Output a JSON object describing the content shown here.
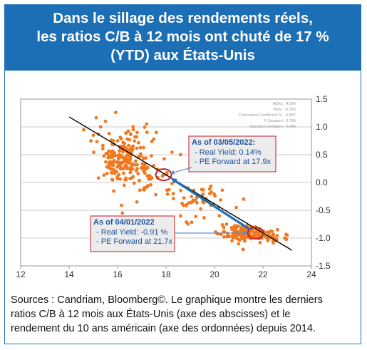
{
  "header": {
    "line1": "Dans le sillage des rendements réels,",
    "line2": "les ratios C/B à 12 mois ont chuté de 17 %",
    "line3": "(YTD) aux États-Unis"
  },
  "caption": {
    "line1": "Sources : Candriam, Bloomberg©. Le graphique montre les derniers",
    "line2": "ratios C/B à 12 mois aux États-Unis (axe des abscisses) et le",
    "line3": "rendement du 10 ans américain (axe des ordonnées) depuis 2014."
  },
  "colors": {
    "header_bg": "#1d6fb5",
    "points": "#f07820",
    "fit_line": "#000000",
    "arrow": "#1f6fb8",
    "highlight": "#c0202a",
    "box_border": "#c0202a"
  },
  "chart_data": {
    "type": "scatter",
    "xlim": [
      12,
      24
    ],
    "ylim": [
      -1.5,
      1.5
    ],
    "xticks": [
      "12",
      "14",
      "16",
      "18",
      "20",
      "22",
      "24"
    ],
    "yticks": [
      "1.5",
      "1.0",
      "0.5",
      "0.0",
      "-0.5",
      "-1.0",
      "-1.5"
    ],
    "grid": "horizontal",
    "regression_line": {
      "x": [
        14.0,
        23.2
      ],
      "y": [
        1.18,
        -1.22
      ]
    },
    "stats": [
      {
        "label": "Alpha",
        "value": "4.886"
      },
      {
        "label": "Beta",
        "value": "-0.263"
      },
      {
        "label": "Correlation Coefficient R",
        "value": "-0.887"
      },
      {
        "label": "R Squared",
        "value": "0.786"
      },
      {
        "label": "Standard Deviation",
        "value": "0.048"
      }
    ],
    "annotations": [
      {
        "title": "As of 03/05/2022:",
        "lines": [
          "Real Yield: 0.14%",
          "PE Forward at 17.9x"
        ],
        "x": 17.9,
        "y": 0.14
      },
      {
        "title": "As of 04/01/2022",
        "lines": [
          "Real Yield: -0.91 %",
          "PE Forward at 21.7x"
        ],
        "x": 21.7,
        "y": -0.91
      }
    ],
    "arrow": {
      "from": [
        21.7,
        -0.91
      ],
      "to": [
        17.9,
        0.14
      ]
    },
    "clusters": [
      {
        "cx": 16.2,
        "cy": 0.45,
        "sx": 0.75,
        "sy": 0.35,
        "n": 190
      },
      {
        "cx": 17.3,
        "cy": 0.2,
        "sx": 0.6,
        "sy": 0.25,
        "n": 40
      },
      {
        "cx": 19.3,
        "cy": -0.35,
        "sx": 0.8,
        "sy": 0.25,
        "n": 45
      },
      {
        "cx": 21.3,
        "cy": -0.92,
        "sx": 0.75,
        "sy": 0.1,
        "n": 150
      },
      {
        "cx": 22.4,
        "cy": -1.0,
        "sx": 0.4,
        "sy": 0.06,
        "n": 20
      }
    ],
    "extra_points": [
      [
        14.6,
        0.95
      ],
      [
        15.0,
        0.85
      ],
      [
        14.9,
        0.75
      ],
      [
        15.3,
        1.0
      ],
      [
        15.5,
        1.1
      ],
      [
        16.2,
        -0.55
      ],
      [
        16.8,
        -0.35
      ],
      [
        17.2,
        1.05
      ],
      [
        17.6,
        0.9
      ],
      [
        18.6,
        0.5
      ],
      [
        18.3,
        -0.2
      ],
      [
        18.9,
        -0.1
      ],
      [
        19.8,
        -0.2
      ],
      [
        20.2,
        -0.6
      ],
      [
        20.5,
        -0.75
      ],
      [
        22.9,
        -1.0
      ],
      [
        23.0,
        -0.95
      ],
      [
        22.6,
        -0.85
      ],
      [
        20.9,
        -0.45
      ],
      [
        21.2,
        -0.3
      ],
      [
        17.9,
        0.14
      ],
      [
        21.7,
        -0.91
      ]
    ]
  }
}
